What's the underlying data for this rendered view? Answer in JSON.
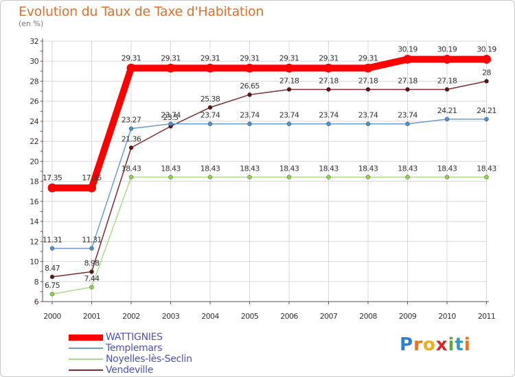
{
  "title": "Evolution du Taux de Taxe d'Habitation",
  "unit": "(en %)",
  "logo": {
    "text": "Proxiti",
    "letters": [
      "P",
      "r",
      "o",
      "x",
      "i",
      "t",
      "i"
    ],
    "colors": [
      "#2e7fd0",
      "#e8731e",
      "#f0b010",
      "#cf2c2c",
      "#60a83c",
      "#2e9ad0",
      "#e8731e"
    ]
  },
  "chart_data": {
    "type": "line",
    "title": "Evolution du Taux de Taxe d'Habitation",
    "ylabel": "(en %)",
    "xlabel": "",
    "x": [
      "2000",
      "2001",
      "2002",
      "2003",
      "2004",
      "2005",
      "2006",
      "2007",
      "2008",
      "2009",
      "2010",
      "2011"
    ],
    "ylim": [
      6,
      32
    ],
    "yticks": [
      "6",
      "8",
      "10",
      "12",
      "14",
      "16",
      "18",
      "20",
      "22",
      "24",
      "26",
      "28",
      "30",
      "32"
    ],
    "grid": true,
    "legend": "bottom-left",
    "series": [
      {
        "name": "WATTIGNIES",
        "color": "#ff0000",
        "values": [
          17.35,
          17.35,
          29.31,
          29.31,
          29.31,
          29.31,
          29.31,
          29.31,
          29.31,
          30.19,
          30.19,
          30.19
        ],
        "labels": [
          "17.35",
          "17.35",
          "29.31",
          "29.31",
          "29.31",
          "29.31",
          "29.31",
          "29.31",
          "29.31",
          "30.19",
          "30.19",
          "30.19"
        ]
      },
      {
        "name": "Templemars",
        "color": "#6a9ccc",
        "values": [
          11.31,
          11.31,
          23.27,
          23.74,
          23.74,
          23.74,
          23.74,
          23.74,
          23.74,
          23.74,
          24.21,
          24.21
        ],
        "labels": [
          "11.31",
          "11.31",
          "23.27",
          "23.74",
          "23.74",
          "23.74",
          "23.74",
          "23.74",
          "23.74",
          "23.74",
          "24.21",
          "24.21"
        ]
      },
      {
        "name": "Noyelles-lès-Seclin",
        "color": "#a8dc8c",
        "values": [
          6.75,
          7.44,
          18.43,
          18.43,
          18.43,
          18.43,
          18.43,
          18.43,
          18.43,
          18.43,
          18.43,
          18.43
        ],
        "labels": [
          "6.75",
          "7.44",
          "18.43",
          "18.43",
          "18.43",
          "18.43",
          "18.43",
          "18.43",
          "18.43",
          "18.43",
          "18.43",
          "18.43"
        ]
      },
      {
        "name": "Vendeville",
        "color": "#7a2a2a",
        "values": [
          8.47,
          8.98,
          21.36,
          23.5,
          25.38,
          26.65,
          27.18,
          27.18,
          27.18,
          27.18,
          27.18,
          28
        ],
        "labels": [
          "8.47",
          "8.98",
          "21.36",
          "23.5",
          "25.38",
          "26.65",
          "27.18",
          "27.18",
          "27.18",
          "27.18",
          "27.18",
          "28"
        ]
      }
    ]
  }
}
